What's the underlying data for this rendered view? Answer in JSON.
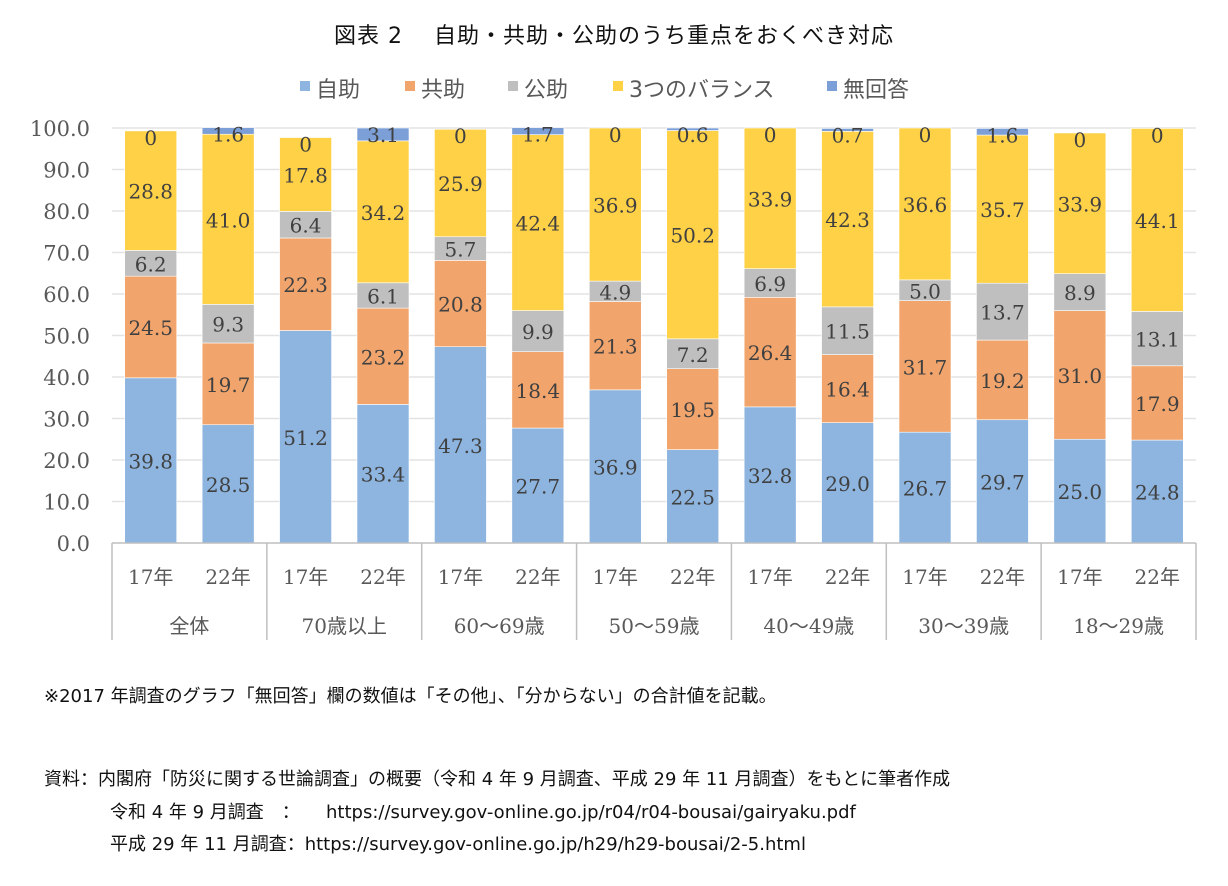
{
  "title": "図表 2　 自助・共助・公助のうち重点をおくべき対応",
  "chart_data": {
    "type": "bar",
    "stacked": true,
    "title": "図表 2　自助・共助・公助のうち重点をおくべき対応",
    "xlabel": "",
    "ylabel": "",
    "ylim": [
      0,
      100
    ],
    "yticks": [
      "0.0",
      "10.0",
      "20.0",
      "30.0",
      "40.0",
      "50.0",
      "60.0",
      "70.0",
      "80.0",
      "90.0",
      "100.0"
    ],
    "grid": true,
    "legend_position": "top",
    "groups": [
      "全体",
      "70歳以上",
      "60〜69歳",
      "50〜59歳",
      "40〜49歳",
      "30〜39歳",
      "18〜29歳"
    ],
    "categories": [
      "17年",
      "22年",
      "17年",
      "22年",
      "17年",
      "22年",
      "17年",
      "22年",
      "17年",
      "22年",
      "17年",
      "22年",
      "17年",
      "22年"
    ],
    "series": [
      {
        "name": "自助",
        "color": "#8DB5E0",
        "values": [
          39.8,
          28.5,
          51.2,
          33.4,
          47.3,
          27.7,
          36.9,
          22.5,
          32.8,
          29.0,
          26.7,
          29.7,
          25.0,
          24.8
        ],
        "labels": [
          "39.8",
          "28.5",
          "51.2",
          "33.4",
          "47.3",
          "27.7",
          "36.9",
          "22.5",
          "32.8",
          "29.0",
          "26.7",
          "29.7",
          "25.0",
          "24.8"
        ]
      },
      {
        "name": "共助",
        "color": "#F1A46C",
        "values": [
          24.5,
          19.7,
          22.3,
          23.2,
          20.8,
          18.4,
          21.3,
          19.5,
          26.4,
          16.4,
          31.7,
          19.2,
          31.0,
          17.9
        ],
        "labels": [
          "24.5",
          "19.7",
          "22.3",
          "23.2",
          "20.8",
          "18.4",
          "21.3",
          "19.5",
          "26.4",
          "16.4",
          "31.7",
          "19.2",
          "31.0",
          "17.9"
        ]
      },
      {
        "name": "公助",
        "color": "#BFBFBF",
        "values": [
          6.2,
          9.3,
          6.4,
          6.1,
          5.7,
          9.9,
          4.9,
          7.2,
          6.9,
          11.5,
          5.0,
          13.7,
          8.9,
          13.1
        ],
        "labels": [
          "6.2",
          "9.3",
          "6.4",
          "6.1",
          "5.7",
          "9.9",
          "4.9",
          "7.2",
          "6.9",
          "11.5",
          "5.0",
          "13.7",
          "8.9",
          "13.1"
        ]
      },
      {
        "name": "3つのバランス",
        "color": "#FFD147",
        "values": [
          28.8,
          41.0,
          17.8,
          34.2,
          25.9,
          42.4,
          36.9,
          50.2,
          33.9,
          42.3,
          36.6,
          35.7,
          33.9,
          44.1
        ],
        "labels": [
          "28.8",
          "41.0",
          "17.8",
          "34.2",
          "25.9",
          "42.4",
          "36.9",
          "50.2",
          "33.9",
          "42.3",
          "36.6",
          "35.7",
          "33.9",
          "44.1"
        ]
      },
      {
        "name": "無回答",
        "color": "#7C9FD8",
        "values": [
          0,
          1.6,
          0,
          3.1,
          0,
          1.7,
          0,
          0.6,
          0,
          0.7,
          0,
          1.6,
          0,
          0
        ],
        "labels": [
          "0",
          "1.6",
          "0",
          "3.1",
          "0",
          "1.7",
          "0",
          "0.6",
          "0",
          "0.7",
          "0",
          "1.6",
          "0",
          "0"
        ]
      }
    ]
  },
  "footnote": "※2017 年調査のグラフ「無回答」欄の数値は「その他」、「分からない」の合計値を記載。",
  "source": {
    "line1": "資料：内閣府「防災に関する世論調査」の概要（令和 4 年 9 月調査、平成 29 年 11 月調査）をもとに筆者作成",
    "line2_label": "令和 4 年 9 月調査　：",
    "line2_url": "https://survey.gov-online.go.jp/r04/r04-bousai/gairyaku.pdf",
    "line3_label": "平成 29 年 11 月調査：",
    "line3_url": "https://survey.gov-online.go.jp/h29/h29-bousai/2-5.html"
  }
}
